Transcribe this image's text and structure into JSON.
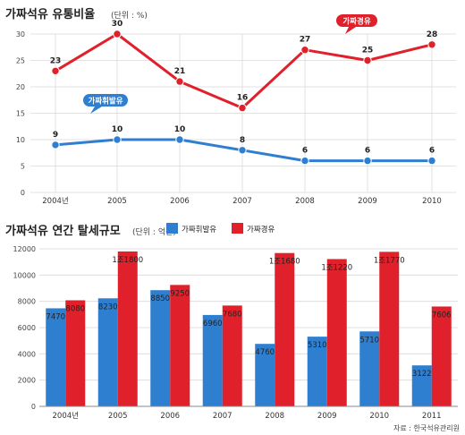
{
  "chart_data": [
    {
      "type": "line",
      "title": "가짜석유 유통비율",
      "unit": "(단위 : %)",
      "x": [
        "2004년",
        "2005",
        "2006",
        "2007",
        "2008",
        "2009",
        "2010"
      ],
      "ylim": [
        0,
        30
      ],
      "yticks": [
        0,
        5,
        10,
        15,
        20,
        25,
        30
      ],
      "grid": true,
      "series": [
        {
          "name": "가짜경유",
          "values": [
            23,
            30,
            21,
            16,
            27,
            25,
            28
          ],
          "color": "#e0202a"
        },
        {
          "name": "가짜휘발유",
          "values": [
            9,
            10,
            10,
            8,
            6,
            6,
            6
          ],
          "color": "#2f7fd0"
        }
      ]
    },
    {
      "type": "bar",
      "title": "가짜석유 연간 탈세규모",
      "unit": "(단위 : 억원)",
      "categories": [
        "2004년",
        "2005",
        "2006",
        "2007",
        "2008",
        "2009",
        "2010",
        "2011"
      ],
      "ylim": [
        0,
        12000
      ],
      "yticks": [
        0,
        2000,
        4000,
        6000,
        8000,
        10000,
        12000
      ],
      "legend_position": "top",
      "grid": true,
      "series": [
        {
          "name": "가짜휘발유",
          "values": [
            7470,
            8230,
            8850,
            6960,
            4760,
            5310,
            5710,
            3122
          ],
          "color": "#2f7fd0",
          "labels": [
            "7470",
            "8230",
            "8850",
            "6960",
            "4760",
            "5310",
            "5710",
            "3122"
          ]
        },
        {
          "name": "가짜경유",
          "values": [
            8080,
            11800,
            9250,
            7680,
            11680,
            11220,
            11770,
            7606
          ],
          "color": "#e0202a",
          "labels": [
            "8080",
            "1조1800",
            "9250",
            "7680",
            "1조1680",
            "1조1220",
            "1조1770",
            "7606"
          ]
        }
      ]
    }
  ],
  "source": "자료 : 한국석유관리원"
}
